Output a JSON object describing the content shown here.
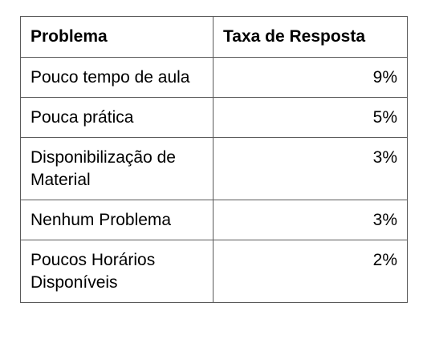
{
  "table": {
    "headers": [
      "Problema",
      "Taxa de Resposta"
    ],
    "rows": [
      {
        "problem": "Pouco tempo de aula",
        "rate": "9%"
      },
      {
        "problem": "Pouca prática",
        "rate": "5%"
      },
      {
        "problem": "Disponibilização de Material",
        "rate": "3%"
      },
      {
        "problem": "Nenhum Problema",
        "rate": "3%"
      },
      {
        "problem": "Poucos Horários Disponíveis",
        "rate": "2%"
      }
    ]
  }
}
